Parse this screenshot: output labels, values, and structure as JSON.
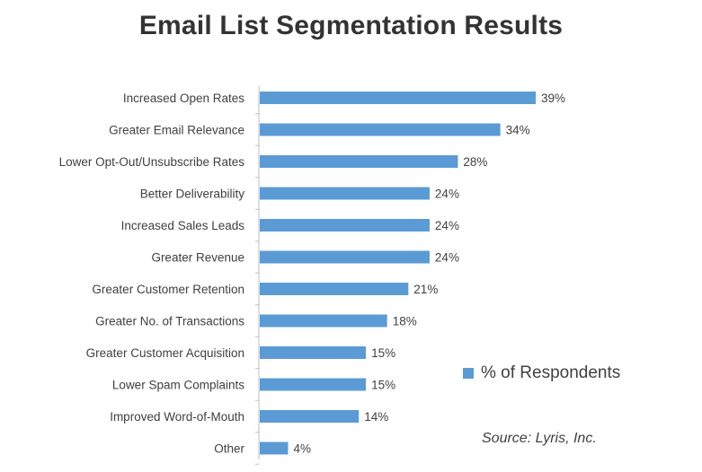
{
  "chart_data": {
    "type": "bar",
    "orientation": "horizontal",
    "title": "Email List Segmentation Results",
    "categories": [
      "Increased Open Rates",
      "Greater Email Relevance",
      "Lower Opt-Out/Unsubscribe Rates",
      "Better Deliverability",
      "Increased Sales Leads",
      "Greater Revenue",
      "Greater Customer Retention",
      "Greater No. of Transactions",
      "Greater Customer Acquisition",
      "Lower Spam Complaints",
      "Improved Word-of-Mouth",
      "Other"
    ],
    "series": [
      {
        "name": "% of Respondents",
        "values": [
          39,
          34,
          28,
          24,
          24,
          24,
          21,
          18,
          15,
          15,
          14,
          4
        ],
        "labels": [
          "39%",
          "34%",
          "28%",
          "24%",
          "24%",
          "24%",
          "21%",
          "18%",
          "15%",
          "15%",
          "14%",
          "4%"
        ],
        "color": "#5b9bd5"
      }
    ],
    "xlim": [
      0,
      39
    ],
    "legend": "right",
    "grid": false,
    "source": "Source: Lyris, Inc."
  }
}
